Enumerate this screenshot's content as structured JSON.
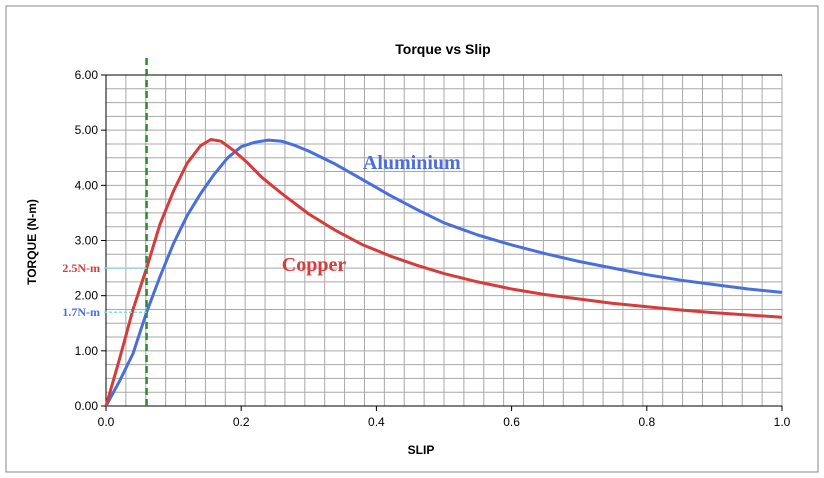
{
  "chart_data": {
    "type": "line",
    "title": "Torque vs Slip",
    "xlabel": "SLIP",
    "ylabel": "TORQUE (N-m)",
    "xlim": [
      0,
      1.0
    ],
    "ylim": [
      0,
      6.0
    ],
    "grid": true,
    "x_ticks": [
      "0.0",
      "0.2",
      "0.4",
      "0.6",
      "0.8",
      "1.0"
    ],
    "y_ticks": [
      "0.00",
      "1.00",
      "2.00",
      "3.00",
      "4.00",
      "5.00",
      "6.00"
    ],
    "series": [
      {
        "name": "Aluminium",
        "color": "#4a6fdc",
        "points": [
          [
            0,
            0
          ],
          [
            0.02,
            0.45
          ],
          [
            0.04,
            0.95
          ],
          [
            0.06,
            1.7
          ],
          [
            0.08,
            2.35
          ],
          [
            0.1,
            2.95
          ],
          [
            0.12,
            3.45
          ],
          [
            0.14,
            3.85
          ],
          [
            0.16,
            4.2
          ],
          [
            0.18,
            4.5
          ],
          [
            0.2,
            4.7
          ],
          [
            0.22,
            4.78
          ],
          [
            0.24,
            4.82
          ],
          [
            0.26,
            4.8
          ],
          [
            0.28,
            4.72
          ],
          [
            0.3,
            4.62
          ],
          [
            0.34,
            4.38
          ],
          [
            0.38,
            4.1
          ],
          [
            0.42,
            3.82
          ],
          [
            0.46,
            3.56
          ],
          [
            0.5,
            3.32
          ],
          [
            0.55,
            3.1
          ],
          [
            0.6,
            2.92
          ],
          [
            0.65,
            2.76
          ],
          [
            0.7,
            2.62
          ],
          [
            0.75,
            2.5
          ],
          [
            0.8,
            2.38
          ],
          [
            0.85,
            2.28
          ],
          [
            0.9,
            2.2
          ],
          [
            0.95,
            2.12
          ],
          [
            1.0,
            2.06
          ]
        ]
      },
      {
        "name": "Copper",
        "color": "#d63c3c",
        "points": [
          [
            0,
            0
          ],
          [
            0.02,
            0.85
          ],
          [
            0.04,
            1.75
          ],
          [
            0.06,
            2.5
          ],
          [
            0.08,
            3.3
          ],
          [
            0.1,
            3.9
          ],
          [
            0.12,
            4.4
          ],
          [
            0.14,
            4.72
          ],
          [
            0.155,
            4.83
          ],
          [
            0.17,
            4.8
          ],
          [
            0.19,
            4.62
          ],
          [
            0.21,
            4.4
          ],
          [
            0.23,
            4.15
          ],
          [
            0.26,
            3.85
          ],
          [
            0.3,
            3.48
          ],
          [
            0.34,
            3.18
          ],
          [
            0.38,
            2.92
          ],
          [
            0.42,
            2.72
          ],
          [
            0.46,
            2.55
          ],
          [
            0.5,
            2.4
          ],
          [
            0.55,
            2.25
          ],
          [
            0.6,
            2.12
          ],
          [
            0.65,
            2.02
          ],
          [
            0.7,
            1.94
          ],
          [
            0.75,
            1.86
          ],
          [
            0.8,
            1.8
          ],
          [
            0.85,
            1.74
          ],
          [
            0.9,
            1.69
          ],
          [
            0.95,
            1.65
          ],
          [
            1.0,
            1.61
          ]
        ]
      }
    ],
    "vertical_marker": {
      "x": 0.06,
      "color": "#2e8b2e"
    },
    "annotations": [
      {
        "text": "2.5N-m",
        "y": 2.5,
        "color": "#d63c3c"
      },
      {
        "text": "1.7N-m",
        "y": 1.7,
        "color": "#4a6fdc"
      }
    ],
    "series_labels": [
      {
        "text": "Aluminium",
        "x": 0.38,
        "y": 4.3,
        "color": "#4a6fdc"
      },
      {
        "text": "Copper",
        "x": 0.26,
        "y": 2.45,
        "color": "#d63c3c"
      }
    ]
  }
}
